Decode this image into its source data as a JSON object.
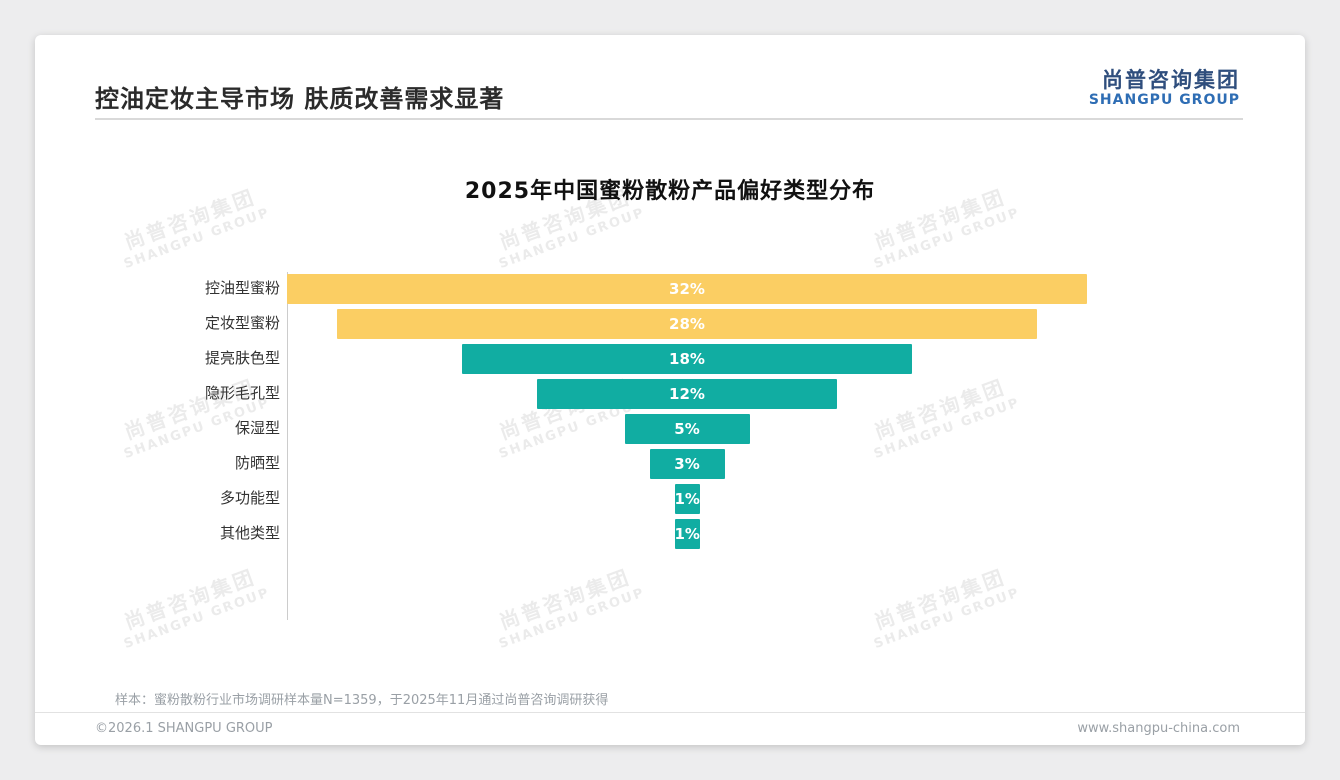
{
  "page": {
    "title": "控油定妆主导市场 肤质改善需求显著",
    "logo": {
      "cn": "尚普咨询集团",
      "en": "SHANGPU GROUP"
    },
    "watermark": {
      "line1": "尚普咨询集团",
      "line2": "SHANGPU GROUP"
    },
    "sample_note": "样本：蜜粉散粉行业市场调研样本量N=1359，于2025年11月通过尚普咨询调研获得",
    "footer": {
      "left": "©2026.1 SHANGPU GROUP",
      "right": "www.shangpu-china.com"
    }
  },
  "chart_data": {
    "type": "bar",
    "title": "2025年中国蜜粉散粉产品偏好类型分布",
    "orientation": "horizontal-centered-funnel",
    "categories": [
      "控油型蜜粉",
      "定妆型蜜粉",
      "提亮肤色型",
      "隐形毛孔型",
      "保湿型",
      "防晒型",
      "多功能型",
      "其他类型"
    ],
    "values": [
      32,
      28,
      18,
      12,
      5,
      3,
      1,
      1
    ],
    "labels": [
      "32%",
      "28%",
      "18%",
      "12%",
      "5%",
      "3%",
      "1%",
      "1%"
    ],
    "colors": [
      "#FBCE63",
      "#FBCE63",
      "#11ADA2",
      "#11ADA2",
      "#11ADA2",
      "#11ADA2",
      "#11ADA2",
      "#11ADA2"
    ],
    "xlim": [
      0,
      32
    ],
    "legend": "none",
    "grid": "off",
    "value_label_color": "#ffffff"
  },
  "colors": {
    "accent_yellow": "#FBCE63",
    "accent_teal": "#11ADA2",
    "logo_blue": "#2e6db4",
    "title_text": "#2b2b2b"
  }
}
